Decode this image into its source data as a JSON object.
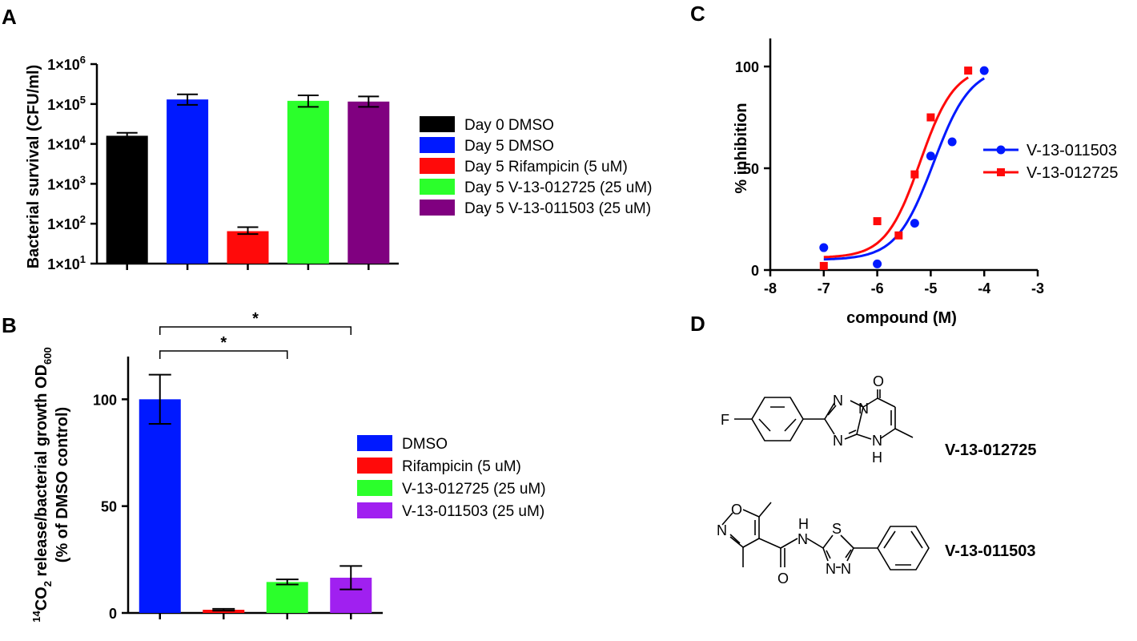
{
  "panels": {
    "a": {
      "label": "A"
    },
    "b": {
      "label": "B"
    },
    "c": {
      "label": "C"
    },
    "d": {
      "label": "D"
    }
  },
  "chart_data": [
    {
      "id": "A",
      "type": "bar",
      "ylabel": "Bacterial survival (CFU/ml)",
      "yscale": "log",
      "ylim": [
        10,
        1000000
      ],
      "yticks": [
        {
          "base": "1×10",
          "exp": "1"
        },
        {
          "base": "1×10",
          "exp": "2"
        },
        {
          "base": "1×10",
          "exp": "3"
        },
        {
          "base": "1×10",
          "exp": "4"
        },
        {
          "base": "1×10",
          "exp": "5"
        },
        {
          "base": "1×10",
          "exp": "6"
        }
      ],
      "categories": [
        "Day 0 DMSO",
        "Day 5 DMSO",
        "Day 5 Rifampicin (5 uM)",
        "Day 5 V-13-012725 (25 uM)",
        "Day 5 V-13-011503 (25 uM)"
      ],
      "values": [
        16000,
        130000,
        65,
        120000,
        115000
      ],
      "errors_low": [
        14000,
        95000,
        55,
        85000,
        85000
      ],
      "errors_high": [
        19000,
        175000,
        82,
        165000,
        155000
      ],
      "colors": [
        "#000000",
        "#0019ff",
        "#ff0a0a",
        "#2bff2b",
        "#800080"
      ],
      "legend_position": "right"
    },
    {
      "id": "B",
      "type": "bar",
      "ylabel_line1": "CO",
      "ylabel_sup": "14",
      "ylabel_sub": "2",
      "ylabel_mid": " release/bacterial growth OD",
      "ylabel_sub2": "600",
      "ylabel_line2": "(% of DMSO control)",
      "ylim": [
        0,
        120
      ],
      "yticks": [
        "0",
        "50",
        "100"
      ],
      "categories": [
        "DMSO",
        "Rifampicin (5 uM)",
        "V-13-012725 (25 uM)",
        "V-13-011503 (25 uM)"
      ],
      "values": [
        100,
        1.5,
        14.5,
        16.5
      ],
      "errors": [
        11.5,
        0.4,
        1.2,
        5.5
      ],
      "colors": [
        "#0019ff",
        "#ff0a0a",
        "#2bff2b",
        "#a020f0"
      ],
      "significance": [
        {
          "from": 0,
          "to": 2,
          "label": "*"
        },
        {
          "from": 0,
          "to": 3,
          "label": "*"
        }
      ],
      "legend_position": "right"
    },
    {
      "id": "C",
      "type": "scatter",
      "xlabel": "compound (M)",
      "ylabel": "% inhibition",
      "xlim": [
        -8,
        -3
      ],
      "ylim": [
        0,
        100
      ],
      "xticks": [
        "-8",
        "-7",
        "-6",
        "-5",
        "-4",
        "-3"
      ],
      "yticks": [
        "0",
        "50",
        "100"
      ],
      "series": [
        {
          "name": "V-13-011503",
          "color": "#0019ff",
          "marker": "circle",
          "x": [
            -7,
            -6,
            -5.3,
            -5,
            -4.6,
            -4
          ],
          "y": [
            11,
            3,
            23,
            56,
            63,
            98
          ],
          "fit": {
            "bottom": 5,
            "top": 100,
            "logec50": -4.95,
            "hill": 1.25
          }
        },
        {
          "name": "V-13-012725",
          "color": "#ff0a0a",
          "marker": "square",
          "x": [
            -7,
            -6,
            -5.6,
            -5.3,
            -5,
            -4.3
          ],
          "y": [
            2,
            24,
            17,
            47,
            75,
            98
          ],
          "fit": {
            "bottom": 6,
            "top": 100,
            "logec50": -5.2,
            "hill": 1.35
          }
        }
      ],
      "legend_position": "right"
    }
  ],
  "structures": {
    "compound1": {
      "name": "V-13-012725",
      "atoms": {
        "F": "F",
        "N1": "N",
        "N2": "N",
        "N3": "N",
        "N4": "N",
        "H": "H",
        "O": "O"
      }
    },
    "compound2": {
      "name": "V-13-011503",
      "atoms": {
        "O_ring": "O",
        "N_ring": "N",
        "N_amide": "N",
        "H_amide": "H",
        "O_amide": "O",
        "S": "S",
        "N_a": "N",
        "N_b": "N"
      }
    }
  }
}
